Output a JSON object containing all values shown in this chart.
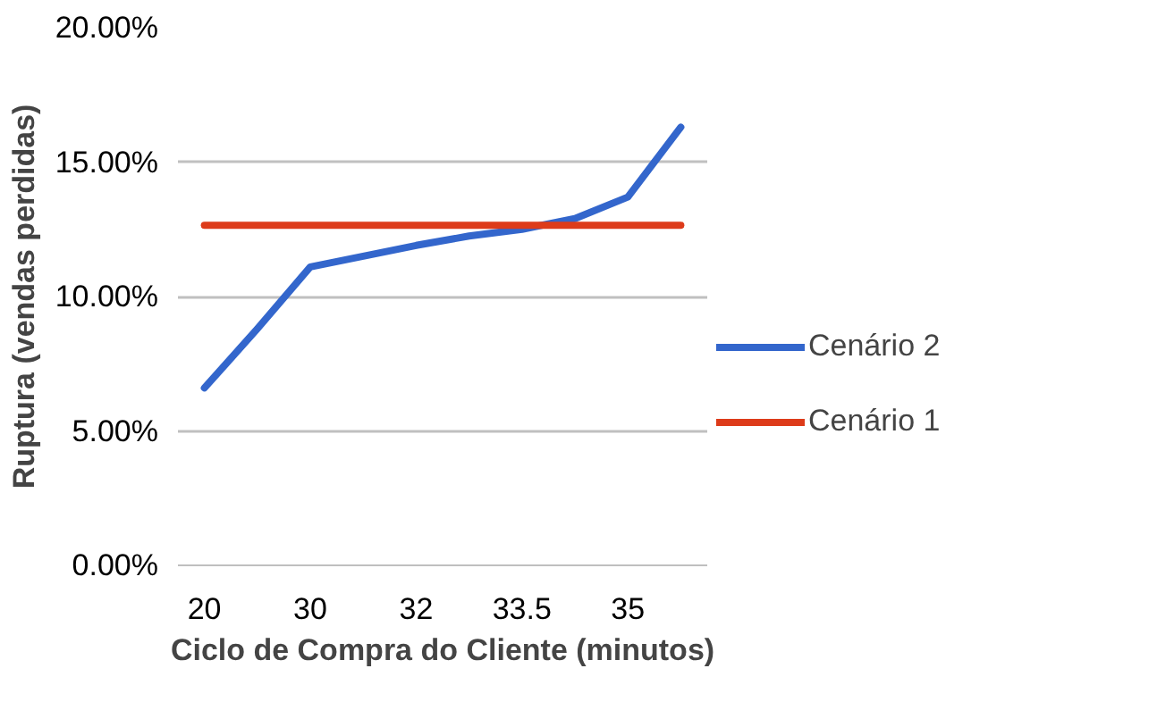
{
  "chart_data": {
    "type": "line",
    "xlabel": "Ciclo de Compra do Cliente (minutos)",
    "ylabel": "Ruptura (vendas perdidas)",
    "categories": [
      "20",
      null,
      "30",
      null,
      "32",
      null,
      "33.5",
      null,
      "35",
      null
    ],
    "series": [
      {
        "name": "Cenário 2",
        "color": "#3366cc",
        "values": [
          6.6,
          8.8,
          11.1,
          11.5,
          11.9,
          12.25,
          12.5,
          12.9,
          13.7,
          16.3
        ]
      },
      {
        "name": "Cenário 1",
        "color": "#dd3b1a",
        "values": [
          12.65,
          12.65,
          12.65,
          12.65,
          12.65,
          12.65,
          12.65,
          12.65,
          12.65,
          12.65
        ]
      }
    ],
    "ylim": [
      0,
      20
    ],
    "yticks": [
      {
        "value": 0,
        "label": "0.00%"
      },
      {
        "value": 5,
        "label": "5.00%"
      },
      {
        "value": 10,
        "label": "10.00%"
      },
      {
        "value": 15,
        "label": "15.00%"
      },
      {
        "value": 20,
        "label": "20.00%"
      }
    ],
    "grid": "y",
    "legend": "right",
    "marker": "none",
    "line_style": "solid"
  }
}
